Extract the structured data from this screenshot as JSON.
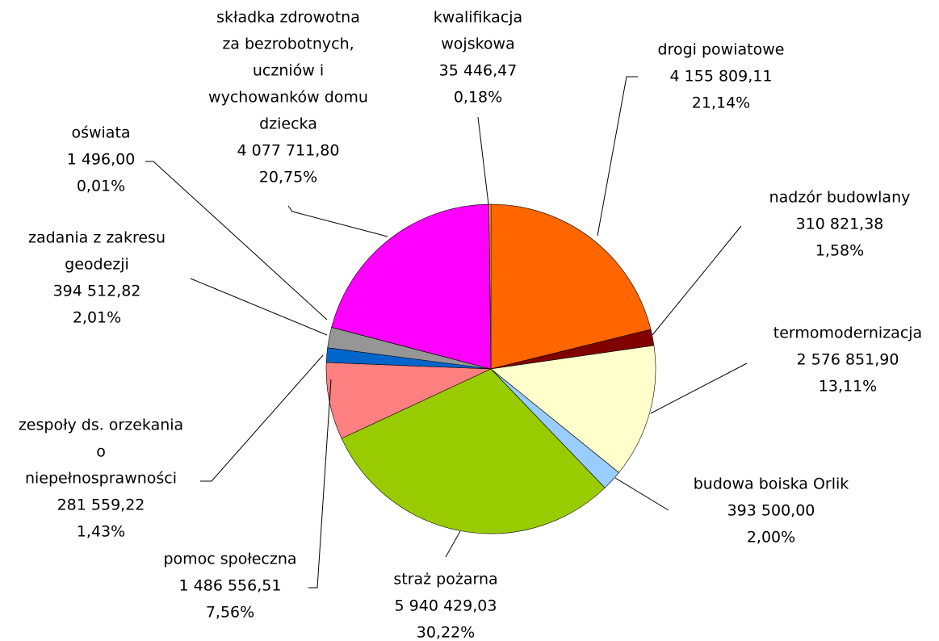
{
  "chart_data": {
    "type": "pie",
    "categories": [
      [
        "drogi powiatowe"
      ],
      [
        "nadzór budowlany"
      ],
      [
        "termomodernizacja"
      ],
      [
        "budowa boiska Orlik"
      ],
      [
        "straż pożarna"
      ],
      [
        "pomoc społeczna"
      ],
      [
        "zespoły ds. orzekania",
        "o",
        "niepełnosprawności"
      ],
      [
        "zadania z zakresu",
        "geodezji"
      ],
      [
        "oświata"
      ],
      [
        "składka zdrowotna",
        "za bezrobotnych,",
        "uczniów i",
        "wychowanków domu",
        "dziecka"
      ],
      [
        "kwalifikacja",
        "wojskowa"
      ]
    ],
    "values": [
      4155809.11,
      310821.38,
      2576851.9,
      393500.0,
      5940429.03,
      1486556.51,
      281559.22,
      394512.82,
      1496.0,
      4077711.8,
      35446.47
    ],
    "value_labels": [
      "4 155 809,11",
      "310 821,38",
      "2 576 851,90",
      "393 500,00",
      "5 940 429,03",
      "1 486 556,51",
      "281 559,22",
      "394 512,82",
      "1 496,00",
      "4 077 711,80",
      "35 446,47"
    ],
    "percents": [
      21.14,
      1.58,
      13.11,
      2.0,
      30.22,
      7.56,
      1.43,
      2.01,
      0.01,
      20.75,
      0.18
    ],
    "percent_labels": [
      "21,14%",
      "1,58%",
      "13,11%",
      "2,00%",
      "30,22%",
      "7,56%",
      "1,43%",
      "2,01%",
      "0,01%",
      "20,75%",
      "0,18%"
    ],
    "colors": [
      "#ff6600",
      "#800000",
      "#ffffcc",
      "#99ccff",
      "#99cc00",
      "#ff8080",
      "#0066cc",
      "#969696",
      "#3366ff",
      "#ff00ff",
      "#ffcc00"
    ]
  }
}
